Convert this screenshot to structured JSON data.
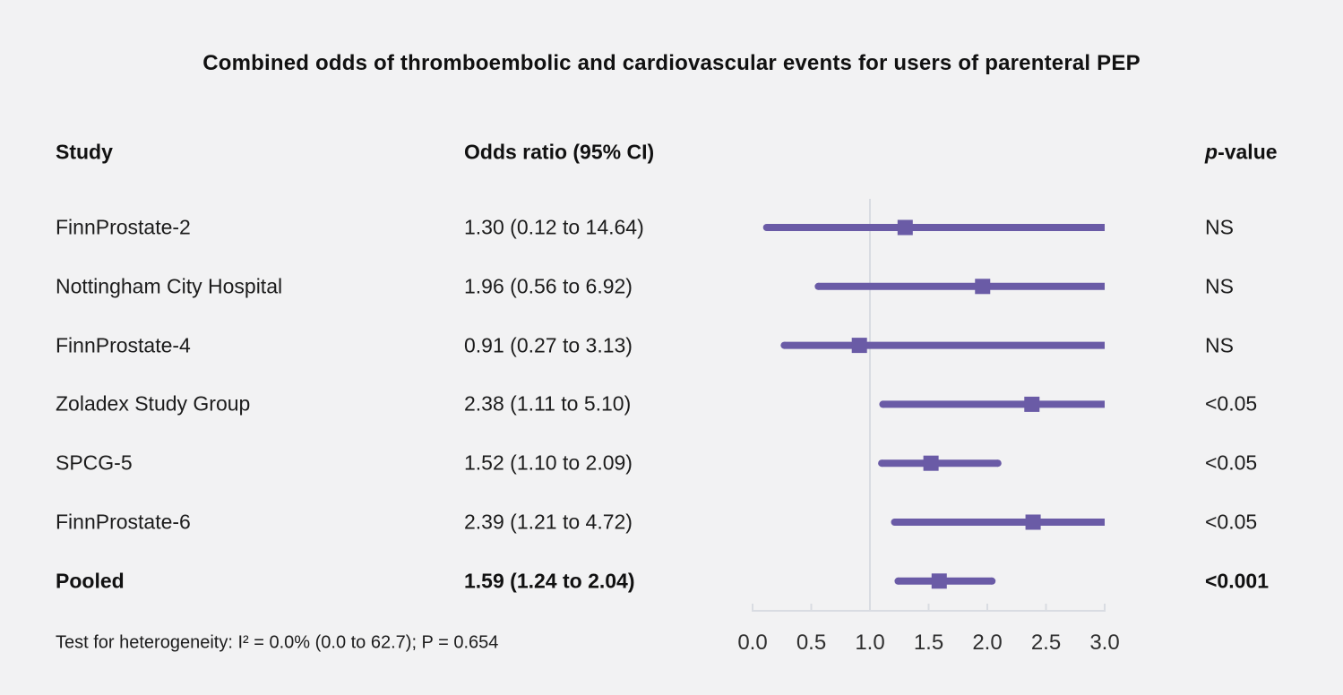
{
  "title": "Combined odds of thromboembolic and cardiovascular events for users of parenteral PEP",
  "columns": {
    "study": "Study",
    "odds_ratio": "Odds ratio (95% CI)",
    "p_italic": "p",
    "p_rest": "-value"
  },
  "footnote": "Test for heterogeneity: I² = 0.0% (0.0 to 62.7); P = 0.654",
  "colors": {
    "background": "#f2f2f3",
    "marker_purple": "#6a5ba6",
    "axis_gray": "#d9dce2",
    "text": "#171717"
  },
  "chart_data": {
    "type": "forest",
    "title": "Combined odds of thromboembolic and cardiovascular events for users of parenteral PEP",
    "x_axis": {
      "min": 0.0,
      "max": 3.0,
      "tick_labels": [
        "0.0",
        "0.5",
        "1.0",
        "1.5",
        "2.0",
        "2.5",
        "3.0"
      ],
      "tick_values": [
        0.0,
        0.5,
        1.0,
        1.5,
        2.0,
        2.5,
        3.0
      ],
      "reference_line": 1.0
    },
    "studies": [
      {
        "name": "FinnProstate-2",
        "or_text": "1.30 (0.12 to 14.64)",
        "est": 1.3,
        "lo": 0.12,
        "hi": 14.64,
        "p": "NS",
        "bold": false
      },
      {
        "name": "Nottingham City Hospital",
        "or_text": "1.96 (0.56 to 6.92)",
        "est": 1.96,
        "lo": 0.56,
        "hi": 6.92,
        "p": "NS",
        "bold": false
      },
      {
        "name": "FinnProstate-4",
        "or_text": "0.91 (0.27 to 3.13)",
        "est": 0.91,
        "lo": 0.27,
        "hi": 3.13,
        "p": "NS",
        "bold": false
      },
      {
        "name": "Zoladex Study Group",
        "or_text": "2.38 (1.11 to 5.10)",
        "est": 2.38,
        "lo": 1.11,
        "hi": 5.1,
        "p": "<0.05",
        "bold": false
      },
      {
        "name": "SPCG-5",
        "or_text": "1.52 (1.10 to 2.09)",
        "est": 1.52,
        "lo": 1.1,
        "hi": 2.09,
        "p": "<0.05",
        "bold": false
      },
      {
        "name": "FinnProstate-6",
        "or_text": "2.39 (1.21 to 4.72)",
        "est": 2.39,
        "lo": 1.21,
        "hi": 4.72,
        "p": "<0.05",
        "bold": false
      },
      {
        "name": "Pooled",
        "or_text": "1.59 (1.24 to 2.04)",
        "est": 1.59,
        "lo": 1.24,
        "hi": 2.04,
        "p": "<0.001",
        "bold": true
      }
    ]
  }
}
